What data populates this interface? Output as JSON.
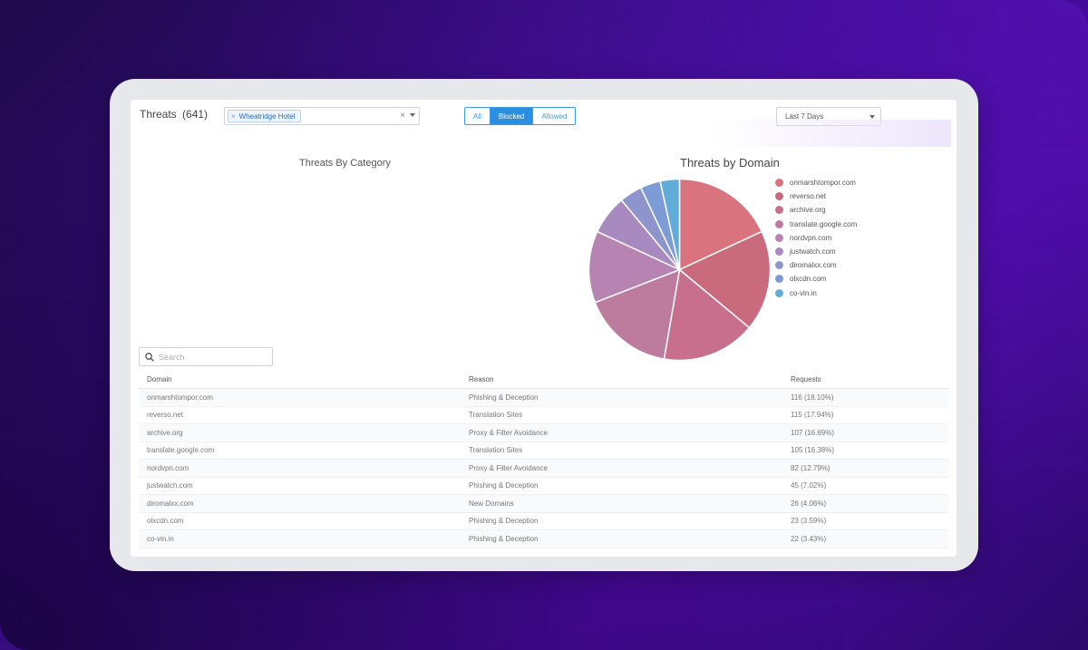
{
  "header": {
    "title": "Threats",
    "count": "(641)",
    "tag_filter": {
      "tag": "Wheatridge Hotel",
      "tag_remove": "×",
      "clear": "×"
    },
    "segments": {
      "all": "All",
      "blocked": "Blocked",
      "allowed": "Allowed",
      "active": "Blocked"
    },
    "date_range": "Last 7 Days"
  },
  "charts": {
    "category_title": "Threats By Category",
    "domain_title": "Threats by Domain"
  },
  "chart_data": {
    "type": "pie",
    "title": "Threats by Domain",
    "labels": [
      "onmarshtompor.com",
      "reverso.net",
      "archive.org",
      "translate.google.com",
      "nordvpn.com",
      "justwatch.com",
      "diromalxx.com",
      "olxcdn.com",
      "co-vin.in"
    ],
    "values": [
      116,
      115,
      107,
      105,
      82,
      45,
      26,
      23,
      22
    ],
    "colors": [
      "#d9737e",
      "#c96b7c",
      "#c76f8c",
      "#bd7c9e",
      "#b783b3",
      "#a88ac0",
      "#8e94cc",
      "#7d9bd4",
      "#62acd9"
    ],
    "legend_position": "right"
  },
  "search": {
    "placeholder": "Search"
  },
  "table": {
    "columns": [
      "Domain",
      "Reason",
      "Requests"
    ],
    "rows": [
      [
        "onmarshtompor.com",
        "Phishing & Deception",
        "116 (18.10%)"
      ],
      [
        "reverso.net",
        "Translation Sites",
        "115 (17.94%)"
      ],
      [
        "archive.org",
        "Proxy & Filter Avoidance",
        "107 (16.69%)"
      ],
      [
        "translate.google.com",
        "Translation Sites",
        "105 (16.38%)"
      ],
      [
        "nordvpn.com",
        "Proxy & Filter Avoidance",
        "82 (12.79%)"
      ],
      [
        "justwatch.com",
        "Phishing & Deception",
        "45 (7.02%)"
      ],
      [
        "diromalxx.com",
        "New Domains",
        "26 (4.06%)"
      ],
      [
        "olxcdn.com",
        "Phishing & Deception",
        "23 (3.59%)"
      ],
      [
        "co-vin.in",
        "Phishing & Deception",
        "22 (3.43%)"
      ]
    ]
  }
}
